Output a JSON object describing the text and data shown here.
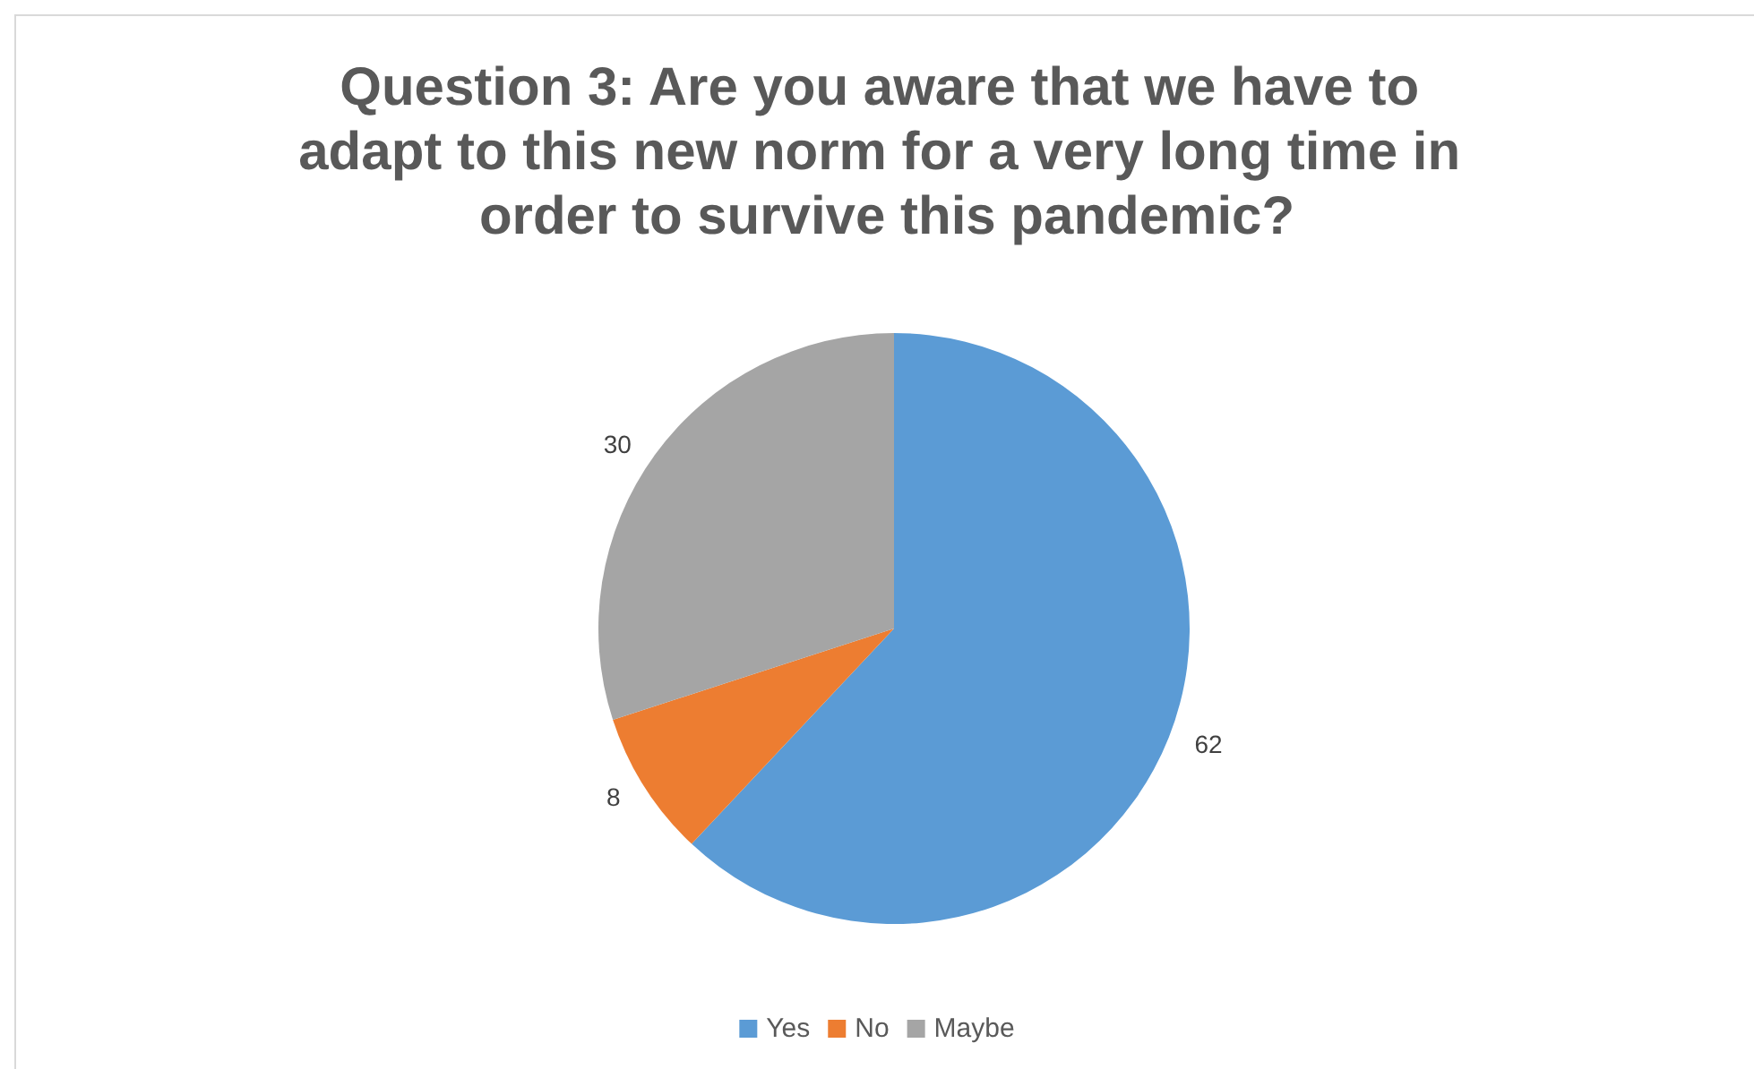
{
  "chart_data": {
    "type": "pie",
    "title": "Question 3: Are you aware that we have to adapt to this new norm for a very long time in order to survive this pandemic?",
    "categories": [
      "Yes",
      "No",
      "Maybe"
    ],
    "values": [
      62,
      8,
      30
    ],
    "colors": [
      "#5b9bd5",
      "#ed7d31",
      "#a5a5a5"
    ],
    "data_labels": true,
    "legend": "bottom"
  }
}
